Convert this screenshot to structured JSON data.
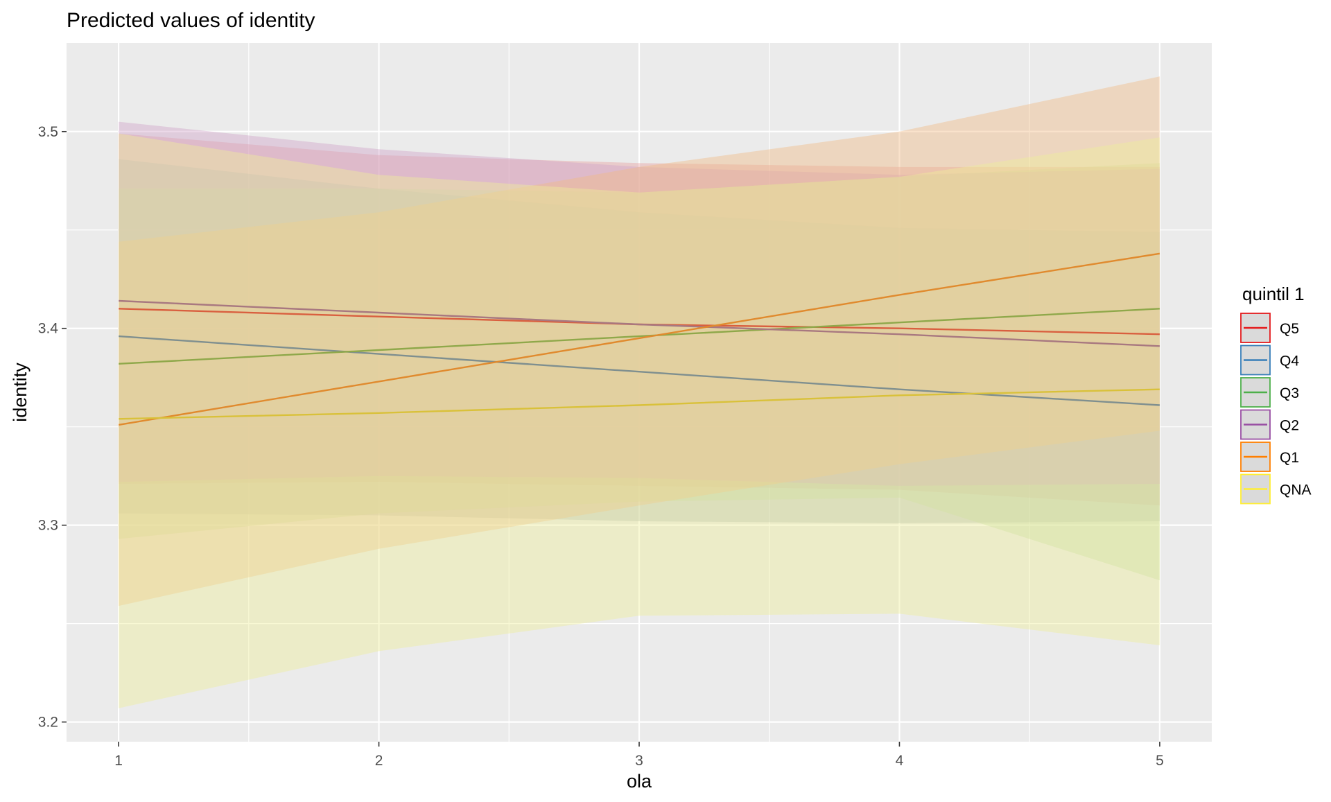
{
  "chart_data": {
    "type": "line",
    "title": "Predicted values of identity",
    "xlabel": "ola",
    "ylabel": "identity",
    "xlim": [
      0.8,
      5.2
    ],
    "ylim": [
      3.19,
      3.545
    ],
    "x_ticks": [
      1,
      2,
      3,
      4,
      5
    ],
    "y_ticks": [
      3.2,
      3.3,
      3.4,
      3.5
    ],
    "grid": true,
    "legend_title": "quintil 1",
    "legend_position": "right",
    "x": [
      1,
      2,
      3,
      4,
      5
    ],
    "series": [
      {
        "name": "Q5",
        "color": "#E41A1C",
        "line_color": "#D95F3F",
        "band_color": "#E8A0A0",
        "values": [
          3.41,
          3.406,
          3.402,
          3.4,
          3.397
        ],
        "lower": [
          3.321,
          3.322,
          3.32,
          3.318,
          3.31
        ],
        "upper": [
          3.499,
          3.488,
          3.484,
          3.482,
          3.482
        ]
      },
      {
        "name": "Q4",
        "color": "#377EB8",
        "line_color": "#7F8F8F",
        "band_color": "#A9B4B8",
        "values": [
          3.396,
          3.387,
          3.378,
          3.369,
          3.361
        ],
        "lower": [
          3.306,
          3.305,
          3.302,
          3.301,
          3.302
        ],
        "upper": [
          3.486,
          3.471,
          3.459,
          3.451,
          3.449
        ]
      },
      {
        "name": "Q3",
        "color": "#4DAF4A",
        "line_color": "#8FA84A",
        "band_color": "#BFD9A8",
        "values": [
          3.382,
          3.389,
          3.396,
          3.403,
          3.41
        ],
        "lower": [
          3.293,
          3.306,
          3.312,
          3.314,
          3.272
        ],
        "upper": [
          3.471,
          3.471,
          3.469,
          3.477,
          3.484
        ]
      },
      {
        "name": "Q2",
        "color": "#984EA3",
        "line_color": "#A87880",
        "band_color": "#CFA3C8",
        "values": [
          3.414,
          3.408,
          3.402,
          3.397,
          3.391
        ],
        "lower": [
          3.322,
          3.325,
          3.324,
          3.32,
          3.321
        ],
        "upper": [
          3.505,
          3.491,
          3.482,
          3.478,
          3.481
        ]
      },
      {
        "name": "Q1",
        "color": "#FF7F00",
        "line_color": "#E08A2E",
        "band_color": "#F0B982",
        "values": [
          3.351,
          3.373,
          3.395,
          3.417,
          3.438
        ],
        "lower": [
          3.259,
          3.288,
          3.31,
          3.331,
          3.348
        ],
        "upper": [
          3.444,
          3.459,
          3.482,
          3.5,
          3.528
        ]
      },
      {
        "name": "QNA",
        "color": "#FFEE33",
        "line_color": "#D9C13A",
        "band_color": "#EEEE99",
        "values": [
          3.354,
          3.357,
          3.361,
          3.366,
          3.369
        ],
        "lower": [
          3.207,
          3.236,
          3.254,
          3.255,
          3.239
        ],
        "upper": [
          3.499,
          3.478,
          3.469,
          3.477,
          3.497
        ]
      }
    ]
  }
}
